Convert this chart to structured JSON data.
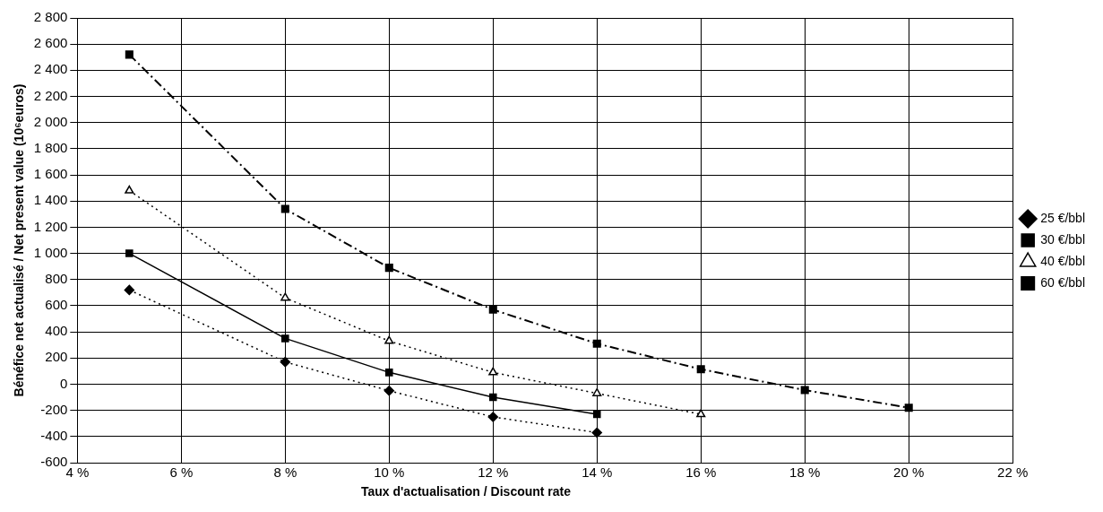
{
  "chart_data": {
    "type": "line",
    "xlabel": "Taux d'actualisation / Discount rate",
    "ylabel": "Bénéfice net actualisé / Net present value (10⁶euros)",
    "xlim": [
      4,
      22
    ],
    "xticks": [
      {
        "value": 4,
        "label": "4 %"
      },
      {
        "value": 6,
        "label": "6 %"
      },
      {
        "value": 8,
        "label": "8 %"
      },
      {
        "value": 10,
        "label": "10 %"
      },
      {
        "value": 12,
        "label": "12 %"
      },
      {
        "value": 14,
        "label": "14 %"
      },
      {
        "value": 16,
        "label": "16 %"
      },
      {
        "value": 18,
        "label": "18 %"
      },
      {
        "value": 20,
        "label": "20 %"
      },
      {
        "value": 22,
        "label": "22 %"
      }
    ],
    "ylim": [
      -600,
      2800
    ],
    "yticks": [
      -600,
      -400,
      -200,
      0,
      200,
      400,
      600,
      800,
      {
        "value": 1000,
        "label": "1 000"
      },
      {
        "value": 1200,
        "label": "1 200"
      },
      {
        "value": 1400,
        "label": "1 400"
      },
      {
        "value": 1600,
        "label": "1 600"
      },
      {
        "value": 1800,
        "label": "1 800"
      },
      {
        "value": 2000,
        "label": "2 000"
      },
      {
        "value": 2200,
        "label": "2 200"
      },
      {
        "value": 2400,
        "label": "2 400"
      },
      {
        "value": 2600,
        "label": "2 600"
      },
      {
        "value": 2800,
        "label": "2 800"
      }
    ],
    "grid": true,
    "legend": "right",
    "series": [
      {
        "name": "25 €/bbl",
        "color": "#000000",
        "marker": "diamond",
        "line_style": "dotted",
        "x": [
          5,
          8,
          10,
          12,
          14
        ],
        "values": [
          720,
          170,
          -50,
          -250,
          -370
        ]
      },
      {
        "name": "30 €/bbl",
        "color": "#000000",
        "marker": "square",
        "line_style": "solid",
        "x": [
          5,
          8,
          10,
          12,
          14
        ],
        "values": [
          1000,
          350,
          90,
          -100,
          -230
        ]
      },
      {
        "name": "40 €/bbl",
        "color": "#000000",
        "marker": "triangle",
        "line_style": "dotted",
        "x": [
          5,
          8,
          10,
          12,
          14,
          16
        ],
        "values": [
          1480,
          660,
          330,
          90,
          -70,
          -230
        ]
      },
      {
        "name": "60 €/bbl",
        "color": "#000000",
        "marker": "square",
        "line_style": "dashed",
        "x": [
          5,
          8,
          10,
          12,
          14,
          16,
          18,
          20
        ],
        "values": [
          2520,
          1340,
          890,
          570,
          310,
          115,
          -45,
          -180
        ]
      }
    ]
  }
}
